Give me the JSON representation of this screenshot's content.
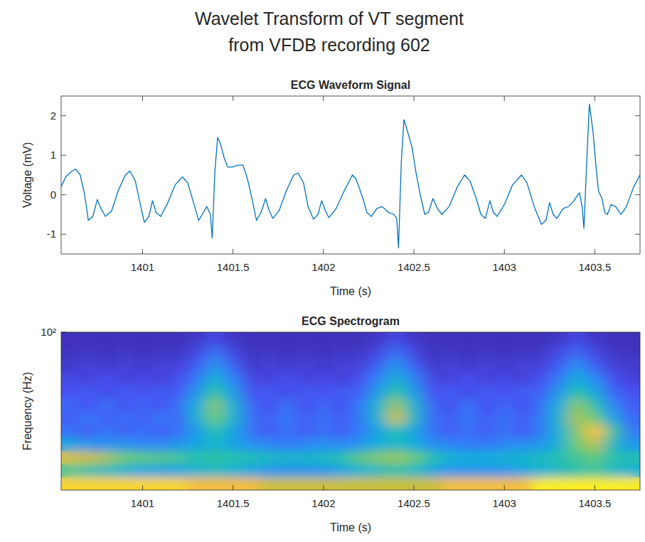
{
  "title": [
    "Wavelet Transform of VT segment",
    "from VFDB recording 602"
  ],
  "chart_data": [
    {
      "type": "line",
      "title": "ECG Waveform Signal",
      "x_label": "Time (s)",
      "y_label": "Voltage (mV)",
      "x": [
        1400.55,
        1400.575,
        1400.61,
        1400.63,
        1400.655,
        1400.68,
        1400.7,
        1400.725,
        1400.75,
        1400.77,
        1400.795,
        1400.83,
        1400.865,
        1400.905,
        1400.93,
        1400.96,
        1400.99,
        1401.01,
        1401.035,
        1401.055,
        1401.075,
        1401.1,
        1401.14,
        1401.18,
        1401.22,
        1401.25,
        1401.285,
        1401.31,
        1401.33,
        1401.355,
        1401.375,
        1401.385,
        1401.4,
        1401.415,
        1401.43,
        1401.45,
        1401.47,
        1401.495,
        1401.53,
        1401.555,
        1401.58,
        1401.605,
        1401.63,
        1401.655,
        1401.68,
        1401.7,
        1401.72,
        1401.755,
        1401.795,
        1401.835,
        1401.86,
        1401.89,
        1401.915,
        1401.945,
        1401.97,
        1401.99,
        1402.01,
        1402.03,
        1402.07,
        1402.115,
        1402.16,
        1402.18,
        1402.215,
        1402.24,
        1402.265,
        1402.295,
        1402.325,
        1402.36,
        1402.39,
        1402.405,
        1402.415,
        1402.43,
        1402.445,
        1402.465,
        1402.49,
        1402.51,
        1402.535,
        1402.56,
        1402.58,
        1402.605,
        1402.63,
        1402.655,
        1402.695,
        1402.74,
        1402.78,
        1402.81,
        1402.845,
        1402.87,
        1402.895,
        1402.92,
        1402.94,
        1402.96,
        1403.0,
        1403.045,
        1403.095,
        1403.125,
        1403.165,
        1403.205,
        1403.23,
        1403.25,
        1403.27,
        1403.29,
        1403.325,
        1403.355,
        1403.385,
        1403.415,
        1403.43,
        1403.44,
        1403.455,
        1403.47,
        1403.49,
        1403.505,
        1403.52,
        1403.54,
        1403.555,
        1403.57,
        1403.59,
        1403.615,
        1403.645,
        1403.675,
        1403.715,
        1403.75
      ],
      "series": [
        {
          "color": "#0072bd",
          "values": [
            0.2,
            0.45,
            0.6,
            0.65,
            0.5,
            0.0,
            -0.65,
            -0.55,
            -0.12,
            -0.35,
            -0.55,
            -0.4,
            0.1,
            0.5,
            0.6,
            0.35,
            -0.3,
            -0.7,
            -0.55,
            -0.15,
            -0.45,
            -0.55,
            -0.2,
            0.25,
            0.45,
            0.3,
            -0.25,
            -0.65,
            -0.5,
            -0.3,
            -0.5,
            -1.1,
            0.6,
            1.45,
            1.3,
            0.95,
            0.7,
            0.7,
            0.75,
            0.75,
            0.4,
            -0.1,
            -0.65,
            -0.45,
            -0.1,
            -0.4,
            -0.6,
            -0.4,
            0.1,
            0.5,
            0.55,
            0.3,
            -0.3,
            -0.62,
            -0.5,
            -0.15,
            -0.4,
            -0.58,
            -0.35,
            0.1,
            0.5,
            0.4,
            -0.05,
            -0.45,
            -0.55,
            -0.35,
            -0.3,
            -0.45,
            -0.5,
            -0.6,
            -1.35,
            0.8,
            1.9,
            1.6,
            1.2,
            0.6,
            0.0,
            -0.5,
            -0.45,
            -0.1,
            -0.35,
            -0.5,
            -0.3,
            0.2,
            0.5,
            0.35,
            -0.1,
            -0.5,
            -0.6,
            -0.15,
            -0.45,
            -0.55,
            -0.25,
            0.25,
            0.5,
            0.3,
            -0.3,
            -0.75,
            -0.65,
            -0.2,
            -0.5,
            -0.6,
            -0.35,
            -0.3,
            -0.15,
            0.05,
            -0.3,
            -0.85,
            0.8,
            2.3,
            1.6,
            0.8,
            0.1,
            -0.1,
            -0.45,
            -0.5,
            -0.25,
            -0.3,
            -0.5,
            -0.3,
            0.2,
            0.5
          ]
        }
      ],
      "xlim": [
        1400.55,
        1403.75
      ],
      "ylim": [
        -1.5,
        2.5
      ],
      "xticks": [
        1401,
        1401.5,
        1402,
        1402.5,
        1403,
        1403.5
      ],
      "yticks": [
        -1,
        0,
        1,
        2
      ]
    },
    {
      "type": "heatmap",
      "title": "ECG Spectrogram",
      "x_label": "Time (s)",
      "y_label": "Frequency (Hz)",
      "log": "y",
      "xlim": [
        1400.55,
        1403.75
      ],
      "ylim": [
        2,
        100
      ],
      "xticks": [
        1401,
        1401.5,
        1402,
        1402.5,
        1403,
        1403.5
      ],
      "yticks": [
        {
          "value": 100,
          "label": "10²"
        }
      ],
      "zlim": [
        0,
        1
      ],
      "xbins": [
        1400.55,
        1400.65,
        1400.75,
        1400.85,
        1400.95,
        1401.05,
        1401.15,
        1401.25,
        1401.35,
        1401.45,
        1401.55,
        1401.65,
        1401.75,
        1401.85,
        1401.95,
        1402.05,
        1402.15,
        1402.25,
        1402.35,
        1402.45,
        1402.55,
        1402.65,
        1402.75,
        1402.85,
        1402.95,
        1403.05,
        1403.15,
        1403.25,
        1403.35,
        1403.45,
        1403.55,
        1403.65,
        1403.75
      ],
      "ybins": [
        2,
        2.77,
        3.84,
        5.31,
        7.36,
        10.2,
        14.1,
        19.6,
        27.1,
        37.5,
        52,
        72,
        100
      ],
      "cells": [
        [
          0.92,
          0.92,
          0.92,
          0.92,
          0.92,
          0.92,
          0.92,
          0.85,
          0.85,
          0.85,
          0.85,
          0.75,
          0.75,
          0.75,
          0.75,
          0.75,
          0.75,
          0.75,
          0.75,
          0.75,
          0.75,
          0.85,
          0.85,
          0.85,
          0.85,
          0.85,
          0.97,
          0.97,
          0.97,
          0.97,
          0.97,
          0.97
        ],
        [
          0.55,
          0.5,
          0.45,
          0.4,
          0.35,
          0.35,
          0.35,
          0.4,
          0.45,
          0.4,
          0.35,
          0.3,
          0.3,
          0.3,
          0.3,
          0.35,
          0.4,
          0.45,
          0.5,
          0.45,
          0.35,
          0.3,
          0.3,
          0.3,
          0.3,
          0.35,
          0.4,
          0.45,
          0.5,
          0.55,
          0.45,
          0.4
        ],
        [
          0.78,
          0.75,
          0.7,
          0.62,
          0.6,
          0.58,
          0.55,
          0.5,
          0.52,
          0.5,
          0.48,
          0.45,
          0.42,
          0.42,
          0.45,
          0.5,
          0.6,
          0.65,
          0.68,
          0.62,
          0.5,
          0.4,
          0.38,
          0.38,
          0.4,
          0.42,
          0.45,
          0.5,
          0.55,
          0.6,
          0.5,
          0.48
        ],
        [
          0.35,
          0.3,
          0.28,
          0.3,
          0.25,
          0.25,
          0.3,
          0.35,
          0.42,
          0.35,
          0.28,
          0.25,
          0.22,
          0.25,
          0.28,
          0.25,
          0.3,
          0.38,
          0.45,
          0.38,
          0.28,
          0.25,
          0.22,
          0.22,
          0.25,
          0.28,
          0.3,
          0.4,
          0.62,
          0.72,
          0.45,
          0.3
        ],
        [
          0.2,
          0.15,
          0.22,
          0.15,
          0.2,
          0.15,
          0.2,
          0.32,
          0.5,
          0.35,
          0.2,
          0.15,
          0.2,
          0.15,
          0.2,
          0.15,
          0.22,
          0.35,
          0.48,
          0.35,
          0.2,
          0.15,
          0.2,
          0.15,
          0.2,
          0.15,
          0.22,
          0.4,
          0.65,
          0.88,
          0.55,
          0.22
        ],
        [
          0.15,
          0.22,
          0.15,
          0.2,
          0.15,
          0.22,
          0.18,
          0.4,
          0.62,
          0.42,
          0.2,
          0.15,
          0.22,
          0.15,
          0.2,
          0.15,
          0.22,
          0.42,
          0.75,
          0.45,
          0.2,
          0.15,
          0.22,
          0.15,
          0.2,
          0.15,
          0.22,
          0.42,
          0.7,
          0.62,
          0.35,
          0.18
        ],
        [
          0.18,
          0.12,
          0.2,
          0.12,
          0.18,
          0.12,
          0.2,
          0.38,
          0.65,
          0.4,
          0.18,
          0.12,
          0.2,
          0.12,
          0.18,
          0.12,
          0.22,
          0.42,
          0.68,
          0.42,
          0.18,
          0.12,
          0.2,
          0.12,
          0.18,
          0.12,
          0.2,
          0.38,
          0.66,
          0.5,
          0.25,
          0.15
        ],
        [
          0.12,
          0.15,
          0.1,
          0.15,
          0.12,
          0.15,
          0.14,
          0.3,
          0.52,
          0.32,
          0.12,
          0.15,
          0.1,
          0.15,
          0.12,
          0.15,
          0.16,
          0.32,
          0.52,
          0.32,
          0.12,
          0.15,
          0.1,
          0.15,
          0.12,
          0.15,
          0.16,
          0.3,
          0.5,
          0.36,
          0.18,
          0.12
        ],
        [
          0.1,
          0.08,
          0.12,
          0.08,
          0.1,
          0.08,
          0.12,
          0.22,
          0.4,
          0.24,
          0.1,
          0.08,
          0.12,
          0.08,
          0.1,
          0.08,
          0.12,
          0.24,
          0.4,
          0.24,
          0.1,
          0.08,
          0.12,
          0.08,
          0.1,
          0.08,
          0.12,
          0.22,
          0.38,
          0.26,
          0.12,
          0.08
        ],
        [
          0.06,
          0.08,
          0.06,
          0.08,
          0.06,
          0.08,
          0.08,
          0.15,
          0.3,
          0.16,
          0.06,
          0.08,
          0.06,
          0.08,
          0.06,
          0.08,
          0.08,
          0.16,
          0.3,
          0.16,
          0.06,
          0.08,
          0.06,
          0.08,
          0.06,
          0.08,
          0.08,
          0.15,
          0.28,
          0.16,
          0.08,
          0.06
        ],
        [
          0.04,
          0.05,
          0.04,
          0.05,
          0.04,
          0.05,
          0.05,
          0.1,
          0.2,
          0.1,
          0.04,
          0.05,
          0.04,
          0.05,
          0.04,
          0.05,
          0.05,
          0.1,
          0.2,
          0.1,
          0.04,
          0.05,
          0.04,
          0.05,
          0.04,
          0.05,
          0.05,
          0.1,
          0.18,
          0.1,
          0.05,
          0.04
        ],
        [
          0.03,
          0.03,
          0.03,
          0.03,
          0.03,
          0.03,
          0.03,
          0.05,
          0.1,
          0.05,
          0.03,
          0.03,
          0.03,
          0.03,
          0.03,
          0.03,
          0.03,
          0.05,
          0.1,
          0.05,
          0.03,
          0.03,
          0.03,
          0.03,
          0.03,
          0.03,
          0.03,
          0.05,
          0.1,
          0.05,
          0.03,
          0.03
        ]
      ]
    }
  ]
}
